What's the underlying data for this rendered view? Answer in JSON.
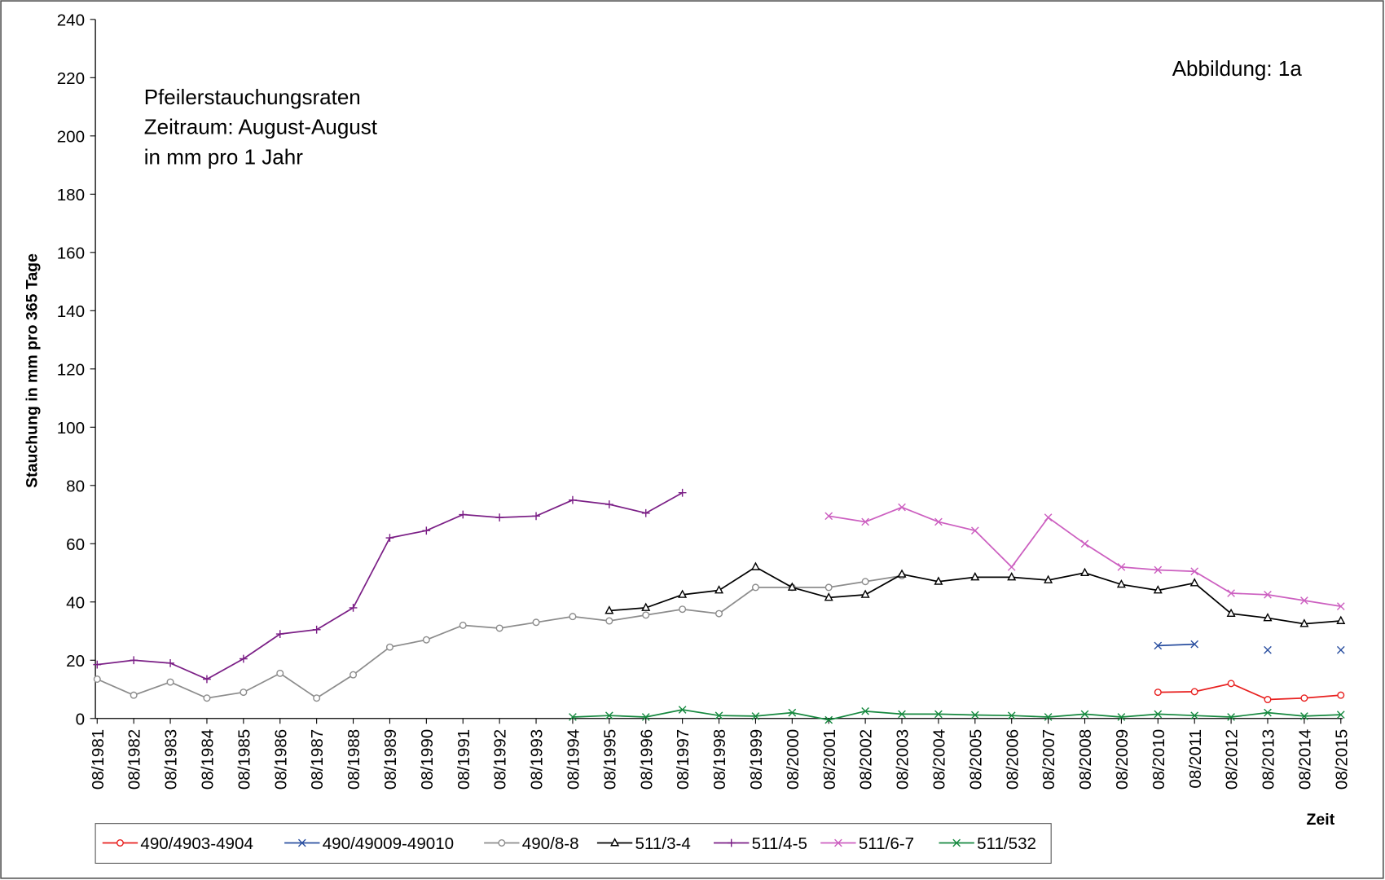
{
  "chart_data": {
    "type": "line",
    "annotations": [
      "Pfeilerstauchungsraten",
      "Zeitraum: August-August",
      "in mm pro 1 Jahr",
      "Abbildung:  1a"
    ],
    "y_label": "Stauchung in mm pro 365 Tage",
    "x_label": "Zeit",
    "categories": [
      "08/1981",
      "08/1982",
      "08/1983",
      "08/1984",
      "08/1985",
      "08/1986",
      "08/1987",
      "08/1988",
      "08/1989",
      "08/1990",
      "08/1991",
      "08/1992",
      "08/1993",
      "08/1994",
      "08/1995",
      "08/1996",
      "08/1997",
      "08/1998",
      "08/1999",
      "08/2000",
      "08/2001",
      "08/2002",
      "08/2003",
      "08/2004",
      "08/2005",
      "08/2006",
      "08/2007",
      "08/2008",
      "08/2009",
      "08/2010",
      "08/2011",
      "08/2012",
      "08/2013",
      "08/2014",
      "08/2015"
    ],
    "ylim": [
      0,
      240
    ],
    "yticks": [
      0,
      20,
      40,
      60,
      80,
      100,
      120,
      140,
      160,
      180,
      200,
      220,
      240
    ],
    "legend": "bottom",
    "series": [
      {
        "name": "490/4903-4904",
        "color": "#e8201f",
        "marker": "circle",
        "values": [
          null,
          null,
          null,
          null,
          null,
          null,
          null,
          null,
          null,
          null,
          null,
          null,
          null,
          null,
          null,
          null,
          null,
          null,
          null,
          null,
          null,
          null,
          null,
          null,
          null,
          null,
          null,
          null,
          null,
          9,
          9.2,
          12,
          6.5,
          7,
          8
        ]
      },
      {
        "name": "490/49009-49010",
        "color": "#2a4fa0",
        "marker": "x",
        "values": [
          null,
          null,
          null,
          null,
          null,
          null,
          null,
          null,
          null,
          null,
          null,
          null,
          null,
          null,
          null,
          null,
          null,
          null,
          null,
          null,
          null,
          null,
          null,
          null,
          null,
          null,
          null,
          null,
          null,
          25,
          25.5,
          null,
          23.5,
          null,
          23.5
        ]
      },
      {
        "name": "490/8-8",
        "color": "#8c8c8c",
        "marker": "circle",
        "values": [
          13.5,
          8,
          12.5,
          7,
          9,
          15.5,
          7,
          15,
          24.5,
          27,
          32,
          31,
          33,
          35,
          33.5,
          35.5,
          37.5,
          36,
          45,
          45,
          45,
          47,
          49,
          null,
          null,
          null,
          null,
          null,
          null,
          null,
          null,
          null,
          null,
          null,
          null
        ]
      },
      {
        "name": "511/3-4",
        "color": "#000000",
        "marker": "triangle",
        "values": [
          null,
          null,
          null,
          null,
          null,
          null,
          null,
          null,
          null,
          null,
          null,
          null,
          null,
          null,
          37,
          38,
          42.5,
          44,
          52,
          45,
          41.5,
          42.5,
          49.5,
          47,
          48.5,
          48.5,
          47.5,
          50,
          46,
          44,
          46.5,
          36,
          34.5,
          32.5,
          33.5
        ]
      },
      {
        "name": "511/4-5",
        "color": "#7b1f86",
        "marker": "plus",
        "values": [
          18.5,
          20,
          19,
          13.5,
          20.5,
          29,
          30.5,
          38,
          62,
          64.5,
          70,
          69,
          69.5,
          75,
          73.5,
          70.5,
          77.5,
          null,
          null,
          null,
          null,
          null,
          null,
          null,
          null,
          null,
          null,
          null,
          null,
          null,
          null,
          null,
          null,
          null,
          null
        ]
      },
      {
        "name": "511/6-7",
        "color": "#cc5fc0",
        "marker": "x",
        "values": [
          null,
          null,
          null,
          null,
          null,
          null,
          null,
          null,
          null,
          null,
          null,
          null,
          null,
          null,
          null,
          null,
          null,
          null,
          null,
          null,
          69.5,
          67.5,
          72.5,
          67.5,
          64.5,
          52,
          69,
          60,
          52,
          51,
          50.5,
          43,
          42.5,
          40.5,
          38.5
        ]
      },
      {
        "name": "511/532",
        "color": "#16893f",
        "marker": "x",
        "values": [
          null,
          null,
          null,
          null,
          null,
          null,
          null,
          null,
          null,
          null,
          null,
          null,
          null,
          0.5,
          1,
          0.5,
          3,
          1,
          0.8,
          2,
          -0.5,
          2.5,
          1.5,
          1.5,
          1.2,
          1,
          0.5,
          1.5,
          0.5,
          1.5,
          1,
          0.5,
          2,
          0.8,
          1.3
        ]
      }
    ]
  }
}
